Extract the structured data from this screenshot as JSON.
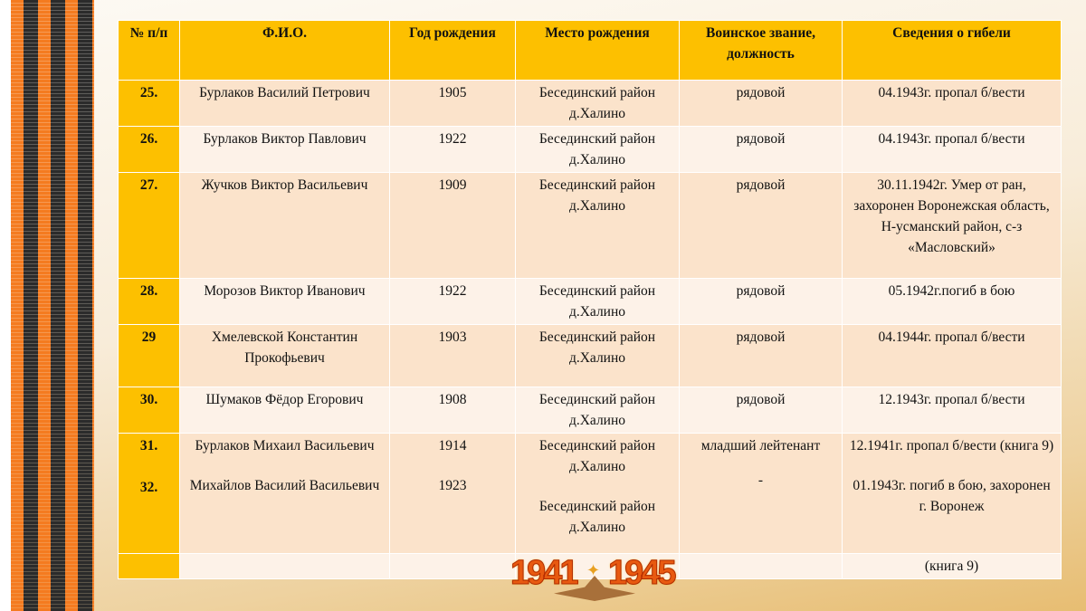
{
  "table": {
    "headers": [
      "№ п/п",
      "Ф.И.О.",
      "Год рождения",
      "Место рождения",
      "Воинское звание, должность",
      "Сведения о гибели"
    ],
    "rows": [
      [
        "25.",
        "Бурлаков Василий Петрович",
        "1905",
        "Бесединский район д.Халино",
        "рядовой",
        "04.1943г.  пропал б/вести"
      ],
      [
        "26.",
        "Бурлаков Виктор Павлович",
        "1922",
        "Бесединский район д.Халино",
        "рядовой",
        "04.1943г.  пропал б/вести"
      ],
      [
        "27.",
        "Жучков Виктор Васильевич",
        "1909",
        "Бесединский район д.Халино",
        "рядовой",
        "30.11.1942г. Умер от ран, захоронен Воронежская область, Н-усманский район, с-з «Масловский»"
      ],
      [
        "28.",
        "Морозов Виктор Иванович",
        "1922",
        "Бесединский район д.Халино",
        "рядовой",
        "05.1942г.погиб в бою"
      ],
      [
        "29",
        "Хмелевской Константин Прокофьевич",
        "1903",
        "Бесединский район д.Халино",
        "рядовой",
        "04.1944г.  пропал б/вести"
      ],
      [
        "30.",
        "Шумаков Фёдор Егорович",
        "1908",
        "Бесединский район д.Халино",
        "рядовой",
        "12.1943г.  пропал б/вести"
      ]
    ],
    "combined": {
      "num1": "31.",
      "num2": "32.",
      "name1": "Бурлаков Михаил Васильевич",
      "name2": "Михайлов Василий Васильевич",
      "year1": "1914",
      "year2": "1923",
      "place1": "Бесединский район д.Халино",
      "place2": "Бесединский район д.Халино",
      "rank1": "младший лейтенант",
      "rank2": "-",
      "fate1": "12.1941г.  пропал б/вести (книга 9)",
      "fate2": "01.1943г. погиб в бою, захоронен г. Воронеж"
    },
    "last_row_fate": "(книга 9)"
  },
  "logo": {
    "year_start": "1941",
    "year_end": "1945"
  }
}
